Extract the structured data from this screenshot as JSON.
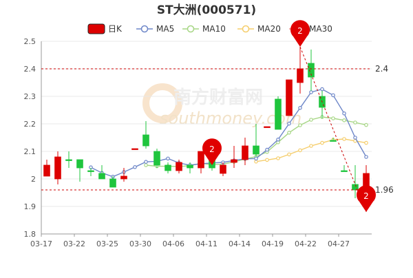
{
  "chart_data": {
    "type": "candlestick",
    "title": "ST大洲(000571)",
    "legend": {
      "position": "top-center",
      "items": [
        {
          "label": "日K",
          "color": "#dd0000",
          "kind": "candle"
        },
        {
          "label": "MA5",
          "color": "#6d86c8",
          "kind": "line"
        },
        {
          "label": "MA10",
          "color": "#a6d684",
          "kind": "line"
        },
        {
          "label": "MA20",
          "color": "#f5cd6a",
          "kind": "line"
        },
        {
          "label": "MA30",
          "color": "#f08a86",
          "kind": "line"
        }
      ]
    },
    "ylim": [
      1.8,
      2.5
    ],
    "y_ticks": [
      1.8,
      1.9,
      2.0,
      2.1,
      2.2,
      2.3,
      2.4,
      2.5
    ],
    "x_tick_labels": [
      "03-17",
      "03-22",
      "03-25",
      "03-30",
      "04-06",
      "04-11",
      "04-14",
      "04-19",
      "04-22",
      "04-27"
    ],
    "x_tick_indices": [
      0,
      3,
      6,
      9,
      12,
      15,
      18,
      21,
      24,
      27
    ],
    "grid": true,
    "colors": {
      "up": "#dd0000",
      "down": "#1fc53d",
      "neutral": "#444444"
    },
    "candles": [
      {
        "o": 2.01,
        "c": 2.05,
        "h": 2.07,
        "l": 2.01
      },
      {
        "o": 2.0,
        "c": 2.08,
        "h": 2.1,
        "l": 1.98
      },
      {
        "o": 2.07,
        "c": 2.07,
        "h": 2.1,
        "l": 2.04
      },
      {
        "o": 2.07,
        "c": 2.04,
        "h": 2.07,
        "l": 1.99
      },
      {
        "o": 2.03,
        "c": 2.03,
        "h": 2.04,
        "l": 2.01
      },
      {
        "o": 2.02,
        "c": 2.0,
        "h": 2.05,
        "l": 2.0
      },
      {
        "o": 2.0,
        "c": 1.97,
        "h": 2.01,
        "l": 1.97
      },
      {
        "o": 2.0,
        "c": 2.01,
        "h": 2.04,
        "l": 1.99
      },
      {
        "o": 2.11,
        "c": 2.11,
        "h": 2.11,
        "l": 2.11
      },
      {
        "o": 2.16,
        "c": 2.12,
        "h": 2.21,
        "l": 2.11
      },
      {
        "o": 2.1,
        "c": 2.05,
        "h": 2.11,
        "l": 2.04
      },
      {
        "o": 2.05,
        "c": 2.03,
        "h": 2.06,
        "l": 2.02
      },
      {
        "o": 2.03,
        "c": 2.06,
        "h": 2.07,
        "l": 2.02
      },
      {
        "o": 2.05,
        "c": 2.04,
        "h": 2.06,
        "l": 2.02
      },
      {
        "o": 2.04,
        "c": 2.1,
        "h": 2.1,
        "l": 2.02
      },
      {
        "o": 2.1,
        "c": 2.04,
        "h": 2.1,
        "l": 2.03
      },
      {
        "o": 2.02,
        "c": 2.05,
        "h": 2.06,
        "l": 2.01
      },
      {
        "o": 2.06,
        "c": 2.07,
        "h": 2.12,
        "l": 2.04
      },
      {
        "o": 2.07,
        "c": 2.12,
        "h": 2.15,
        "l": 2.05
      },
      {
        "o": 2.12,
        "c": 2.09,
        "h": 2.2,
        "l": 2.08
      },
      {
        "o": 2.19,
        "c": 2.19,
        "h": 2.19,
        "l": 2.19
      },
      {
        "o": 2.29,
        "c": 2.18,
        "h": 2.3,
        "l": 2.18
      },
      {
        "o": 2.23,
        "c": 2.36,
        "h": 2.36,
        "l": 2.23
      },
      {
        "o": 2.35,
        "c": 2.4,
        "h": 2.48,
        "l": 2.31
      },
      {
        "o": 2.42,
        "c": 2.37,
        "h": 2.47,
        "l": 2.32
      },
      {
        "o": 2.3,
        "c": 2.26,
        "h": 2.32,
        "l": 2.22
      },
      {
        "o": 2.14,
        "c": 2.14,
        "h": 2.15,
        "l": 2.14
      },
      {
        "o": 2.03,
        "c": 2.03,
        "h": 2.05,
        "l": 2.03
      },
      {
        "o": 1.98,
        "c": 1.96,
        "h": 2.05,
        "l": 1.93
      },
      {
        "o": 1.96,
        "c": 2.02,
        "h": 2.05,
        "l": 1.88
      }
    ],
    "ma5": [
      null,
      null,
      null,
      null,
      2.042,
      2.022,
      2.008,
      2.025,
      2.043,
      2.062,
      2.064,
      2.074,
      2.058,
      2.05,
      2.055,
      2.058,
      2.06,
      2.067,
      2.073,
      2.074,
      2.106,
      2.143,
      2.201,
      2.258,
      2.315,
      2.326,
      2.304,
      2.238,
      2.15,
      2.08
    ],
    "ma10": [
      null,
      null,
      null,
      null,
      null,
      null,
      null,
      null,
      null,
      2.05,
      2.046,
      2.046,
      2.045,
      2.048,
      2.057,
      2.051,
      2.054,
      2.062,
      2.072,
      2.081,
      2.098,
      2.133,
      2.168,
      2.195,
      2.215,
      2.225,
      2.22,
      2.213,
      2.205,
      2.196
    ],
    "ma20": [
      null,
      null,
      null,
      null,
      null,
      null,
      null,
      null,
      null,
      null,
      null,
      null,
      null,
      null,
      null,
      null,
      null,
      null,
      null,
      2.063,
      2.069,
      2.075,
      2.089,
      2.104,
      2.12,
      2.131,
      2.142,
      2.145,
      2.138,
      2.131
    ],
    "markers": [
      {
        "index": 15,
        "label": "2",
        "y": 2.05
      },
      {
        "index": 23,
        "label": "2",
        "y": 2.48
      },
      {
        "index": 29,
        "label": "2",
        "y": 1.88
      }
    ],
    "reference_lines": [
      {
        "value": 2.4,
        "label": "2.4"
      },
      {
        "value": 1.96,
        "label": "1.96"
      }
    ],
    "watermark": "南方财富网 southmoney.com"
  }
}
